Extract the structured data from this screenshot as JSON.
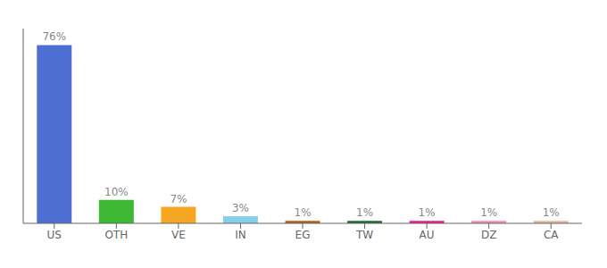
{
  "chart_data": {
    "type": "bar",
    "categories": [
      "US",
      "OTH",
      "VE",
      "IN",
      "EG",
      "TW",
      "AU",
      "DZ",
      "CA"
    ],
    "values": [
      76,
      10,
      7,
      3,
      1,
      1,
      1,
      1,
      1
    ],
    "value_labels": [
      "76%",
      "10%",
      "7%",
      "3%",
      "1%",
      "1%",
      "1%",
      "1%",
      "1%"
    ],
    "colors": [
      "#4d6fd4",
      "#3db832",
      "#f5a623",
      "#87ceeb",
      "#b85c1a",
      "#1a6e2e",
      "#e91e8c",
      "#f48cb6",
      "#e8b49a"
    ],
    "ylim": [
      0,
      83
    ],
    "grid": false,
    "data_labels": true,
    "tick_labels": "x"
  }
}
